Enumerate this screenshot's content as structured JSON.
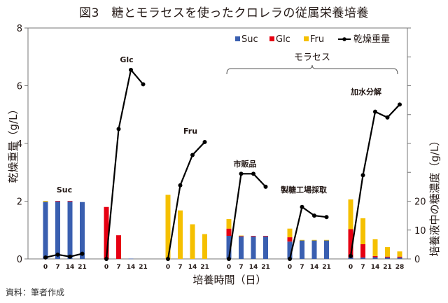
{
  "title": "図3　糖とモラセスを使ったクロレラの従属栄養培養",
  "source": "資料：筆者作成",
  "chart_data": {
    "type": "bar",
    "title": "図3　糖とモラセスを使ったクロレラの従属栄養培養",
    "xlabel": "培養時間（日）",
    "ylabel_left": "乾燥重量（g/L）",
    "ylabel_right": "培養液中の糖濃度（g/L）",
    "ylim_left": [
      0,
      8
    ],
    "yticks_left": [
      "0",
      "2",
      "4",
      "6",
      "8"
    ],
    "ylim_right": [
      0,
      80
    ],
    "yticks_right": [
      "0",
      "10",
      "20"
    ],
    "grid": false,
    "legend": {
      "placement": "top-right",
      "entries": [
        {
          "name": "Suc",
          "type": "bar",
          "color": "#3a5fb0"
        },
        {
          "name": "Glc",
          "type": "bar",
          "color": "#e60012"
        },
        {
          "name": "Fru",
          "type": "bar",
          "color": "#f5c000"
        },
        {
          "name": "乾燥重量",
          "type": "line",
          "color": "#000000"
        }
      ]
    },
    "bracket_label": "モラセス",
    "bracket_groups": [
      "市販品",
      "製糖工場採取",
      "加水分解"
    ],
    "groups": [
      {
        "label": "Suc",
        "days": [
          "0",
          "7",
          "14",
          "21"
        ],
        "suc": [
          19.8,
          19.9,
          19.9,
          19.7
        ],
        "glc": [
          0,
          0.2,
          0.2,
          0
        ],
        "fru": [
          0.3,
          0,
          0,
          0
        ],
        "dry_weight": [
          0.05,
          0.15,
          0.08,
          0.18
        ]
      },
      {
        "label": "Glc",
        "days": [
          "0",
          "7",
          "14",
          "21"
        ],
        "suc": [
          0,
          0,
          0.1,
          0
        ],
        "glc": [
          18,
          8.2,
          0,
          0
        ],
        "fru": [
          0,
          0,
          0,
          0
        ],
        "dry_weight": [
          0,
          4.5,
          6.55,
          6.05
        ]
      },
      {
        "label": "Fru",
        "days": [
          "0",
          "7",
          "14",
          "21"
        ],
        "suc": [
          0,
          0,
          0,
          0
        ],
        "glc": [
          0,
          0,
          0,
          0
        ],
        "fru": [
          22.2,
          16.8,
          12,
          8.6
        ],
        "dry_weight": [
          0,
          2.55,
          3.6,
          4.05
        ]
      },
      {
        "label": "市販品",
        "days": [
          "0",
          "7",
          "14",
          "21"
        ],
        "suc": [
          8,
          7.8,
          7.8,
          7.8
        ],
        "glc": [
          2.5,
          0.2,
          0.2,
          0.2
        ],
        "fru": [
          3.3,
          0.1,
          0,
          0
        ],
        "dry_weight": [
          0,
          2.95,
          2.95,
          2.5
        ]
      },
      {
        "label": "製糖工場採取",
        "days": [
          "0",
          "7",
          "14",
          "21"
        ],
        "suc": [
          6,
          6.4,
          6.4,
          6.4
        ],
        "glc": [
          1.5,
          0,
          0,
          0
        ],
        "fru": [
          3,
          0.2,
          0.2,
          0.2
        ],
        "dry_weight": [
          0,
          1.8,
          1.5,
          1.45
        ]
      },
      {
        "label": "加水分解",
        "days": [
          "0",
          "7",
          "14",
          "21",
          "28"
        ],
        "suc": [
          0.5,
          0.5,
          0.6,
          0.5,
          0.5
        ],
        "glc": [
          9.8,
          4.6,
          0.4,
          0.3,
          0.3
        ],
        "fru": [
          10.3,
          9,
          5.8,
          3.3,
          1.8
        ],
        "dry_weight": [
          0.1,
          2.9,
          5.1,
          4.9,
          5.35
        ]
      }
    ]
  }
}
